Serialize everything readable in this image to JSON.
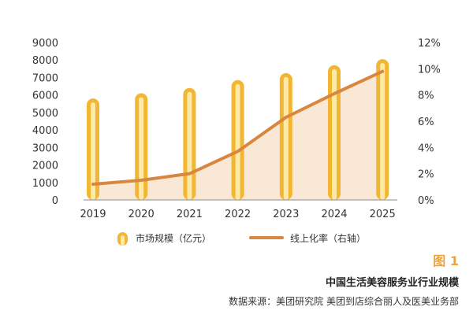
{
  "chart_data": {
    "type": "bar",
    "categories": [
      "2019",
      "2020",
      "2021",
      "2022",
      "2023",
      "2024",
      "2025"
    ],
    "series": [
      {
        "name": "市场规模（亿元）",
        "type": "bar",
        "axis": "left",
        "values": [
          5800,
          6100,
          6400,
          6850,
          7250,
          7700,
          8050
        ]
      },
      {
        "name": "线上化率（右轴）",
        "type": "line",
        "axis": "right",
        "values": [
          1.2,
          1.5,
          2.0,
          3.7,
          6.3,
          8.1,
          9.8
        ]
      }
    ],
    "y_left": {
      "min": 0,
      "max": 9000,
      "ticks": [
        0,
        1000,
        2000,
        3000,
        4000,
        5000,
        6000,
        7000,
        8000,
        9000
      ]
    },
    "y_right": {
      "min": 0,
      "max": 12,
      "ticks": [
        "0%",
        "2%",
        "4%",
        "6%",
        "8%",
        "10%",
        "12%"
      ]
    },
    "legend_position": "bottom",
    "colors": {
      "bar_outer": "#f2b632",
      "bar_inner": "#fde9a8",
      "line": "#d9873f",
      "area": "#f9e5d3"
    }
  },
  "figure": {
    "label": "图 1",
    "title": "中国生活美容服务业行业规模",
    "source": "数据来源：美团研究院  美团到店综合丽人及医美业务部"
  }
}
